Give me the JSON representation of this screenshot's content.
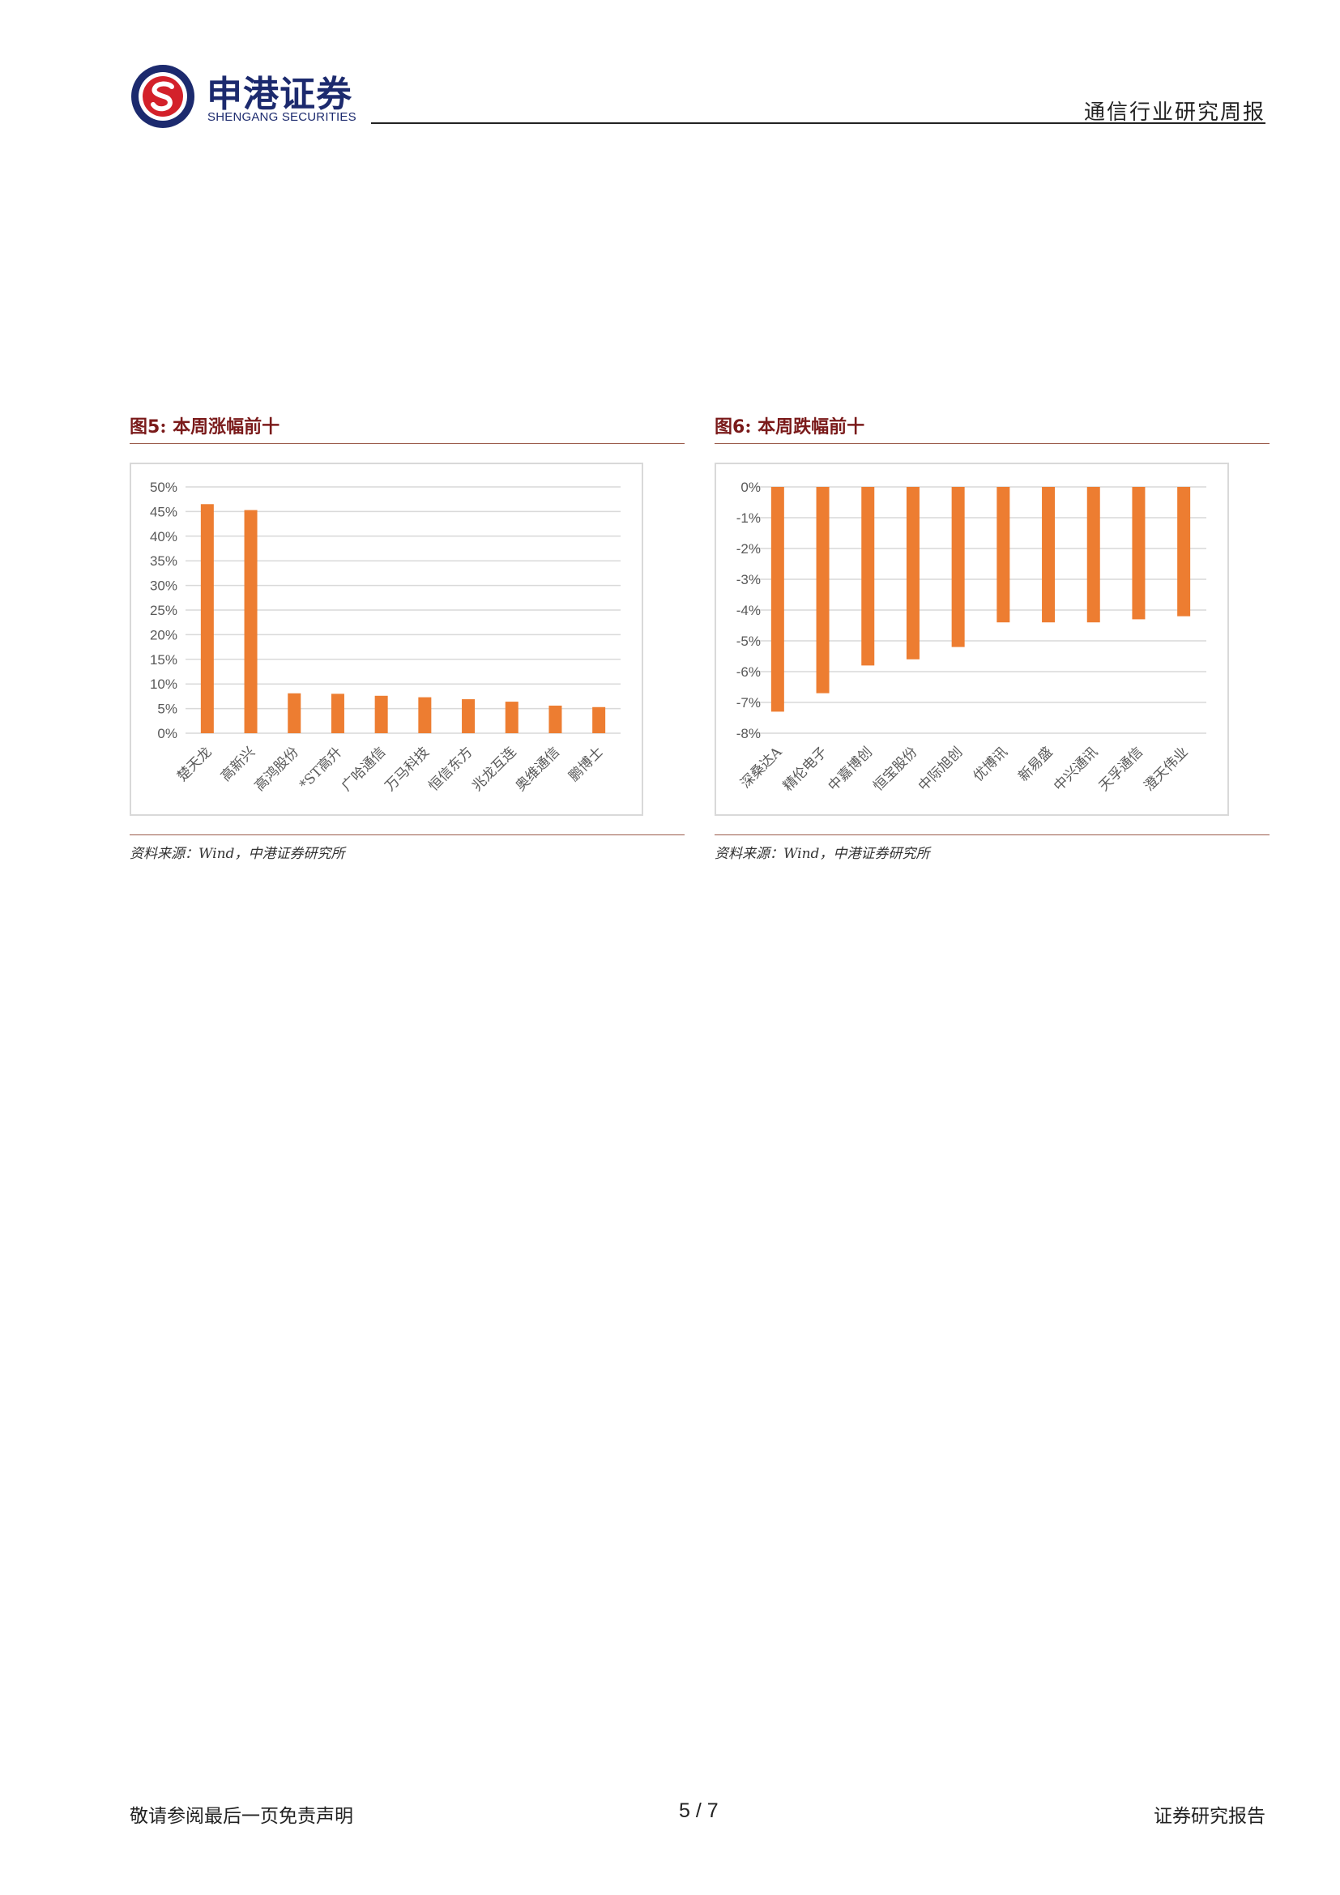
{
  "header": {
    "brand_cn": "申港证券",
    "brand_en": "SHENGANG SECURITIES",
    "report_title": "通信行业研究周报",
    "colors": {
      "brand_navy": "#1c2a6e",
      "brand_red": "#d3212a"
    }
  },
  "figures": [
    {
      "caption_prefix": "图",
      "caption_num": "5",
      "caption_text": ":  本周涨幅前十",
      "source": "资料来源：Wind，中港证券研究所",
      "bar_color": "#ed7d31"
    },
    {
      "caption_prefix": "图",
      "caption_num": "6",
      "caption_text": ":  本周跌幅前十",
      "source": "资料来源：Wind，中港证券研究所",
      "bar_color": "#ed7d31"
    }
  ],
  "chart_data": [
    {
      "type": "bar",
      "title": "",
      "categories": [
        "楚天龙",
        "高新兴",
        "高鸿股份",
        "*ST高升",
        "广哈通信",
        "万马科技",
        "恒信东方",
        "兆龙互连",
        "奥维通信",
        "鹏博士"
      ],
      "values": [
        46.5,
        45.3,
        8.1,
        8.0,
        7.6,
        7.3,
        6.9,
        6.4,
        5.6,
        5.3
      ],
      "ylim": [
        0,
        50
      ],
      "yticks": [
        "50%",
        "45%",
        "40%",
        "35%",
        "30%",
        "25%",
        "20%",
        "15%",
        "10%",
        "5%",
        "0%"
      ],
      "ytick_values": [
        50,
        45,
        40,
        35,
        30,
        25,
        20,
        15,
        10,
        5,
        0
      ],
      "grid": true,
      "xlabel": "",
      "ylabel": ""
    },
    {
      "type": "bar",
      "title": "",
      "categories": [
        "深桑达A",
        "精伦电子",
        "中嘉博创",
        "恒宝股份",
        "中际旭创",
        "优博讯",
        "新易盛",
        "中兴通讯",
        "天孚通信",
        "澄天伟业"
      ],
      "values": [
        -7.3,
        -6.7,
        -5.8,
        -5.6,
        -5.2,
        -4.4,
        -4.4,
        -4.4,
        -4.3,
        -4.2
      ],
      "ylim": [
        -8,
        0
      ],
      "yticks": [
        "0%",
        "-1%",
        "-2%",
        "-3%",
        "-4%",
        "-5%",
        "-6%",
        "-7%",
        "-8%"
      ],
      "ytick_values": [
        0,
        -1,
        -2,
        -3,
        -4,
        -5,
        -6,
        -7,
        -8
      ],
      "grid": true,
      "xlabel": "",
      "ylabel": ""
    }
  ],
  "footer": {
    "disclaimer": "敬请参阅最后一页免责声明",
    "page": "5 / 7",
    "report_type": "证券研究报告"
  }
}
